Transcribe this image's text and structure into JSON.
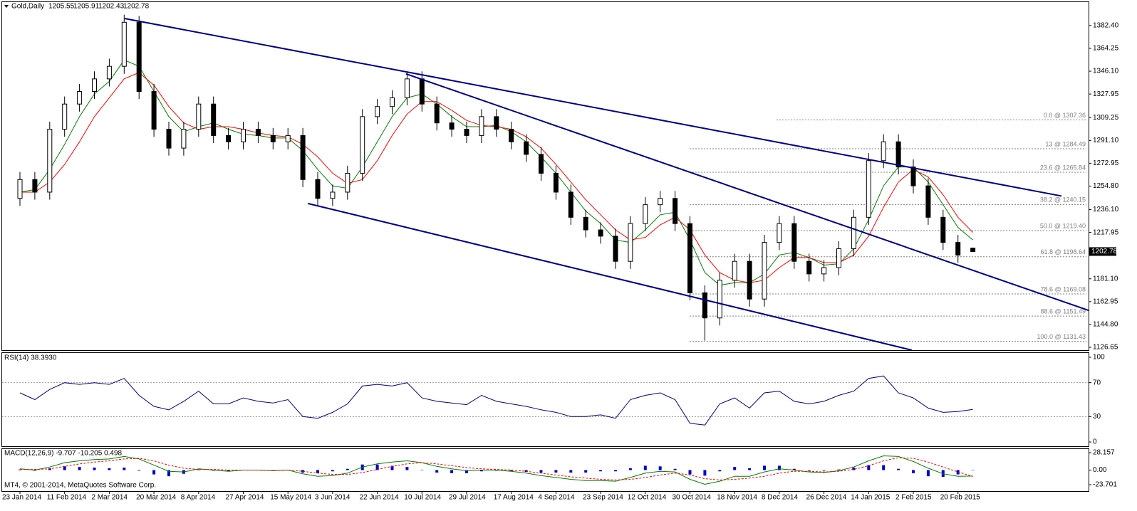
{
  "chart_data": [
    {
      "type": "candlestick",
      "title": "Gold,Daily",
      "categories": [
        "23 Jan 2014",
        null,
        null,
        "11 Feb 2014",
        null,
        null,
        "2 Mar 2014",
        null,
        null,
        "20 Mar 2014",
        null,
        null,
        "8 Apr 2014",
        null,
        null,
        "27 Apr 2014",
        null,
        null,
        "15 May 2014",
        null,
        null,
        "3 Jun 2014",
        null,
        null,
        "22 Jun 2014",
        null,
        null,
        "10 Jul 2014",
        null,
        null,
        "29 Jul 2014",
        null,
        null,
        "17 Aug 2014",
        null,
        null,
        "4 Sep 2014",
        null,
        null,
        "23 Sep 2014",
        null,
        null,
        "12 Oct 2014",
        null,
        null,
        "30 Oct 2014",
        null,
        null,
        "18 Nov 2014",
        null,
        null,
        "8 Dec 2014",
        null,
        null,
        "26 Dec 2014",
        null,
        null,
        "14 Jan 2015",
        null,
        null,
        "2 Feb 2015",
        null,
        null,
        "20 Feb 2015",
        null
      ],
      "open": [
        1245,
        1260,
        1250,
        1300,
        1320,
        1330,
        1340,
        1350,
        1385,
        1330,
        1300,
        1285,
        1300,
        1320,
        1295,
        1290,
        1300,
        1295,
        1290,
        1295,
        1260,
        1245,
        1250,
        1265,
        1310,
        1318,
        1325,
        1340,
        1320,
        1305,
        1300,
        1295,
        1310,
        1300,
        1290,
        1280,
        1265,
        1250,
        1230,
        1220,
        1215,
        1195,
        1225,
        1240,
        1245,
        1225,
        1170,
        1150,
        1180,
        1195,
        1165,
        1210,
        1225,
        1195,
        1185,
        1190,
        1205,
        1230,
        1275,
        1290,
        1270,
        1255,
        1230,
        1210,
        1205.55
      ],
      "high": [
        1266,
        1266,
        1306,
        1326,
        1336,
        1346,
        1356,
        1391,
        1390,
        1336,
        1306,
        1306,
        1326,
        1326,
        1301,
        1306,
        1306,
        1301,
        1301,
        1301,
        1266,
        1256,
        1271,
        1316,
        1324,
        1331,
        1346,
        1346,
        1326,
        1311,
        1306,
        1316,
        1316,
        1306,
        1296,
        1286,
        1271,
        1256,
        1236,
        1226,
        1221,
        1231,
        1246,
        1251,
        1251,
        1231,
        1176,
        1186,
        1201,
        1201,
        1216,
        1231,
        1231,
        1201,
        1196,
        1211,
        1236,
        1281,
        1296,
        1296,
        1276,
        1261,
        1236,
        1216,
        1205.91
      ],
      "low": [
        1239,
        1244,
        1244,
        1294,
        1314,
        1324,
        1334,
        1344,
        1324,
        1294,
        1279,
        1279,
        1294,
        1289,
        1284,
        1284,
        1289,
        1284,
        1284,
        1254,
        1239,
        1239,
        1244,
        1259,
        1304,
        1312,
        1319,
        1314,
        1299,
        1294,
        1289,
        1289,
        1294,
        1284,
        1274,
        1259,
        1244,
        1224,
        1214,
        1209,
        1189,
        1189,
        1219,
        1234,
        1219,
        1164,
        1132,
        1144,
        1174,
        1159,
        1159,
        1204,
        1189,
        1179,
        1179,
        1184,
        1199,
        1224,
        1269,
        1264,
        1249,
        1224,
        1204,
        1194,
        1202.43
      ],
      "close": [
        1260,
        1250,
        1300,
        1320,
        1330,
        1340,
        1350,
        1385,
        1330,
        1300,
        1285,
        1300,
        1320,
        1295,
        1290,
        1300,
        1295,
        1290,
        1295,
        1260,
        1245,
        1250,
        1265,
        1310,
        1318,
        1325,
        1340,
        1320,
        1305,
        1300,
        1295,
        1310,
        1300,
        1290,
        1280,
        1265,
        1250,
        1230,
        1220,
        1215,
        1195,
        1225,
        1240,
        1245,
        1225,
        1170,
        1150,
        1180,
        1195,
        1165,
        1210,
        1225,
        1195,
        1185,
        1190,
        1205,
        1230,
        1275,
        1290,
        1270,
        1255,
        1230,
        1210,
        1200,
        1202.78
      ],
      "up_color": "#ffffff",
      "down_color": "#000000",
      "series": [
        {
          "color": "#008000",
          "values": [
            1250,
            1252,
            1268,
            1288,
            1310,
            1328,
            1338,
            1355,
            1350,
            1330,
            1310,
            1298,
            1302,
            1305,
            1300,
            1296,
            1295,
            1293,
            1293,
            1283,
            1268,
            1255,
            1253,
            1270,
            1290,
            1310,
            1325,
            1328,
            1320,
            1310,
            1302,
            1302,
            1303,
            1298,
            1290,
            1278,
            1265,
            1250,
            1235,
            1225,
            1212,
            1210,
            1220,
            1232,
            1234,
            1212,
            1186,
            1176,
            1178,
            1178,
            1185,
            1200,
            1202,
            1198,
            1192,
            1193,
            1205,
            1228,
            1255,
            1270,
            1270,
            1258,
            1240,
            1222,
            1212
          ]
        },
        {
          "color": "#ff0000",
          "values": [
            1250,
            1250,
            1258,
            1272,
            1290,
            1310,
            1325,
            1340,
            1345,
            1335,
            1318,
            1305,
            1300,
            1302,
            1302,
            1300,
            1297,
            1295,
            1294,
            1288,
            1278,
            1265,
            1257,
            1260,
            1275,
            1295,
            1312,
            1322,
            1322,
            1315,
            1307,
            1303,
            1302,
            1300,
            1294,
            1285,
            1272,
            1258,
            1244,
            1232,
            1220,
            1212,
            1214,
            1224,
            1230,
            1220,
            1200,
            1186,
            1180,
            1178,
            1180,
            1190,
            1198,
            1198,
            1194,
            1194,
            1200,
            1215,
            1238,
            1258,
            1268,
            1262,
            1248,
            1230,
            1218
          ]
        }
      ],
      "trendlines": {
        "color": "#00008b",
        "lines": [
          {
            "x": [
              7.03,
              69.95
            ],
            "y": [
              1388,
              1246.9
            ]
          },
          {
            "x": [
              25.93,
              71.77
            ],
            "y": [
              1344,
              1156
            ]
          },
          {
            "x": [
              19.33,
              59.9
            ],
            "y": [
              1241,
              1124.4
            ]
          }
        ]
      },
      "fib_color": "#808080",
      "fib_levels": [
        {
          "label": "0.0 @ 1307.36",
          "value": 1307.36
        },
        {
          "label": "13 @ 1284.49",
          "value": 1284.49
        },
        {
          "label": "23.6 @ 1265.84",
          "value": 1265.84
        },
        {
          "label": "38.2 @ 1240.15",
          "value": 1240.15
        },
        {
          "label": "50.0 @ 1219.40",
          "value": 1219.4
        },
        {
          "label": "61.8 @ 1198.64",
          "value": 1198.64
        },
        {
          "label": "78.6 @ 1169.08",
          "value": 1169.08
        },
        {
          "label": "88.6 @ 1151.49",
          "value": 1151.49
        },
        {
          "label": "100.0 @ 1131.43",
          "value": 1131.43
        }
      ],
      "ylim": [
        1124.4,
        1401.0
      ],
      "yticks": [
        {
          "value": 1382.4,
          "label": "1382.40"
        },
        1364.25,
        {
          "value": 1346.1,
          "label": "1346.10"
        },
        1327.95,
        1309.25,
        {
          "value": 1291.1,
          "label": "1291.10"
        },
        1272.95,
        {
          "value": 1254.8,
          "label": "1254.80"
        },
        {
          "value": 1236.1,
          "label": "1236.10"
        },
        1217.95,
        {
          "value": 1181.1,
          "label": "1181.10"
        },
        1162.95,
        {
          "value": 1144.8,
          "label": "1144.80"
        },
        1126.65
      ]
    },
    {
      "type": "line",
      "title": "RSI(14) 38.3930",
      "color": "#00008b",
      "values": [
        58,
        50,
        62,
        70,
        68,
        70,
        68,
        75,
        55,
        42,
        38,
        48,
        60,
        45,
        45,
        52,
        48,
        46,
        50,
        30,
        28,
        35,
        45,
        66,
        68,
        66,
        70,
        52,
        48,
        46,
        44,
        55,
        48,
        45,
        42,
        38,
        35,
        30,
        30,
        32,
        28,
        50,
        55,
        58,
        50,
        22,
        20,
        45,
        52,
        40,
        58,
        60,
        48,
        45,
        48,
        55,
        60,
        75,
        78,
        58,
        52,
        40,
        35,
        36,
        38.39
      ],
      "ylim": [
        -5,
        105
      ],
      "yticks": [
        100,
        70,
        30,
        0
      ]
    },
    {
      "type": "macd",
      "title": "MACD(12,26,9) -9.707 -10.205 0.498",
      "series": [
        {
          "color": "#008000",
          "values": [
            2,
            0,
            5,
            12,
            15,
            17,
            18,
            22,
            18,
            8,
            -2,
            -3,
            2,
            0,
            -2,
            0,
            0,
            -1,
            0,
            -6,
            -10,
            -9,
            -5,
            5,
            10,
            13,
            15,
            12,
            6,
            2,
            -1,
            0,
            0,
            -2,
            -5,
            -9,
            -12,
            -15,
            -17,
            -17,
            -18,
            -12,
            -5,
            -2,
            -3,
            -15,
            -23,
            -18,
            -10,
            -10,
            -3,
            2,
            0,
            -3,
            -4,
            -1,
            5,
            15,
            23,
            22,
            14,
            3,
            -6,
            -10,
            -9.707
          ]
        },
        {
          "color": "#ff0000",
          "values": [
            1,
            1,
            2,
            6,
            10,
            13,
            15,
            18,
            19,
            15,
            8,
            3,
            1,
            1,
            0,
            0,
            0,
            -1,
            0,
            -2,
            -5,
            -7,
            -7,
            -4,
            1,
            6,
            10,
            12,
            10,
            7,
            4,
            2,
            1,
            0,
            -2,
            -5,
            -8,
            -11,
            -13,
            -15,
            -16,
            -15,
            -12,
            -8,
            -5,
            -8,
            -14,
            -16,
            -15,
            -13,
            -10,
            -5,
            -2,
            -2,
            -3,
            -2,
            1,
            7,
            15,
            20,
            19,
            13,
            5,
            -3,
            -10.205
          ]
        }
      ],
      "histogram": {
        "color": "#0000cd",
        "values": [
          1,
          -1,
          3,
          6,
          5,
          4,
          3,
          4,
          -1,
          -7,
          -10,
          -6,
          1,
          -1,
          -2,
          0,
          0,
          0,
          0,
          -4,
          -5,
          -2,
          2,
          9,
          9,
          7,
          5,
          0,
          -4,
          -5,
          -5,
          -2,
          -1,
          -2,
          -3,
          -4,
          -4,
          -4,
          -4,
          -2,
          -2,
          3,
          7,
          6,
          2,
          -7,
          -9,
          -2,
          5,
          3,
          7,
          7,
          2,
          -1,
          -1,
          1,
          4,
          8,
          8,
          2,
          -5,
          -10,
          -11,
          -7,
          0.498
        ]
      },
      "ylim": [
        -34,
        34
      ],
      "yticks": [
        28.157,
        {
          "value": 0,
          "label": "0.00"
        },
        -23.701
      ]
    }
  ],
  "footer": "MT4, © 2001-2014, MetaQuotes Software Corp."
}
